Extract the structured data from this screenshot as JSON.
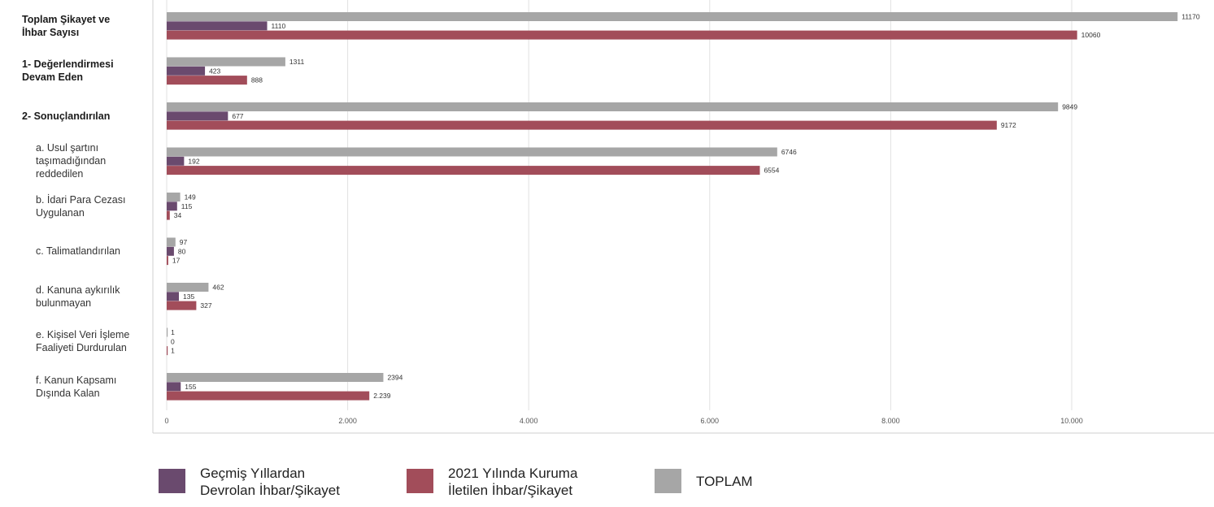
{
  "chart_data": {
    "type": "bar",
    "orientation": "horizontal",
    "categories": [
      "Toplam Şikayet ve\nİhbar Sayısı",
      "1- Değerlendirmesi\nDevam Eden",
      "2- Sonuçlandırılan",
      "a. Usul şartını\ntaşımadığından\nreddedilen",
      "b. İdari Para Cezası\nUygulanan",
      "c. Talimatlandırılan",
      "d. Kanuna aykırılık\nbulunmayan",
      "e. Kişisel Veri İşleme\nFaaliyeti Durdurulan",
      "f. Kanun Kapsamı\nDışında Kalan"
    ],
    "category_bold": [
      true,
      true,
      true,
      false,
      false,
      false,
      false,
      false,
      false
    ],
    "series": [
      {
        "name": "TOPLAM",
        "color": "#a6a6a6",
        "values": [
          11170,
          1311,
          9849,
          6746,
          149,
          97,
          462,
          1,
          2394
        ],
        "labels": [
          "11170",
          "1311",
          "9849",
          "6746",
          "149",
          "97",
          "462",
          "1",
          "2394"
        ]
      },
      {
        "name": "Geçmiş Yıllardan\nDevrolan İhbar/Şikayet",
        "color": "#6a4a6e",
        "values": [
          1110,
          423,
          677,
          192,
          115,
          80,
          135,
          0,
          155
        ],
        "labels": [
          "1110",
          "423",
          "677",
          "192",
          "115",
          "80",
          "135",
          "0",
          "155"
        ]
      },
      {
        "name": "2021 Yılında Kuruma\nİletilen İhbar/Şikayet",
        "color": "#a24d5a",
        "values": [
          10060,
          888,
          9172,
          6554,
          34,
          17,
          327,
          1,
          2239
        ],
        "labels": [
          "10060",
          "888",
          "9172",
          "6554",
          "34",
          "17",
          "327",
          "1",
          "2.239"
        ]
      }
    ],
    "xlim": [
      0,
      11500
    ],
    "xticks": [
      0,
      2000,
      4000,
      6000,
      8000,
      10000
    ],
    "xtick_labels": [
      "0",
      "2.000",
      "4.000",
      "6.000",
      "8.000",
      "10.000"
    ],
    "grid": true,
    "legend_placement": "bottom",
    "title": "",
    "xlabel": "",
    "ylabel": ""
  },
  "legend": [
    {
      "label": "Geçmiş Yıllardan\nDevrolan İhbar/Şikayet",
      "color": "#6a4a6e"
    },
    {
      "label": "2021 Yılında Kuruma\nİletilen İhbar/Şikayet",
      "color": "#a24d5a"
    },
    {
      "label": "TOPLAM",
      "color": "#a6a6a6"
    }
  ]
}
